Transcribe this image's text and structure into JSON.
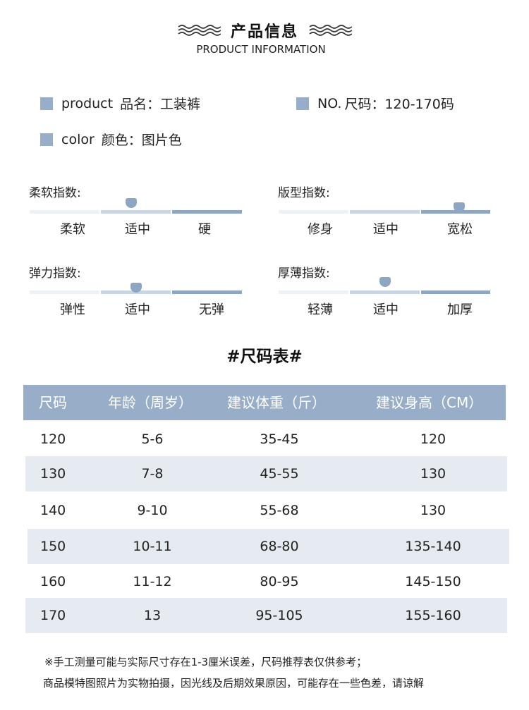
{
  "header": {
    "title": "产品信息",
    "subtitle": "PRODUCT INFORMATION"
  },
  "info": {
    "product_en": "product",
    "product_label": "品名：工装裤",
    "size_en": "NO.",
    "size_label": "尺码：120-170码",
    "color_en": "color",
    "color_label": "颜色：图片色"
  },
  "indices": [
    {
      "label": "柔软指数:",
      "options": [
        "柔软",
        "适中",
        "硬"
      ],
      "selected": "适中"
    },
    {
      "label": "版型指数:",
      "options": [
        "修身",
        "适中",
        "宽松"
      ],
      "selected": "宽松"
    },
    {
      "label": "弹力指数:",
      "options": [
        "弹性",
        "适中",
        "无弹"
      ],
      "selected": "适中"
    },
    {
      "label": "厚薄指数:",
      "options": [
        "轻薄",
        "适中",
        "加厚"
      ],
      "selected": "适中"
    }
  ],
  "size_table": {
    "title": "#尺码表#",
    "headers": [
      "尺码",
      "年龄（周岁）",
      "建议体重（斤）",
      "建议身高（CM）"
    ],
    "rows": [
      [
        "120",
        "5-6",
        "35-45",
        "120"
      ],
      [
        "130",
        "7-8",
        "45-55",
        "130"
      ],
      [
        "140",
        "9-10",
        "55-68",
        "130"
      ],
      [
        "150",
        "10-11",
        "68-80",
        "135-140"
      ],
      [
        "160",
        "11-12",
        "80-95",
        "145-150"
      ],
      [
        "170",
        "13",
        "95-105",
        "155-160"
      ]
    ]
  },
  "notes": [
    "※手工测量可能与实际尺寸存在1-3厘米误差，尺码推荐表仅供参考；",
    "商品模特图照片为实物拍摄，因光线及后期效果原因，可能存在一些色差，请谅解"
  ],
  "colors": {
    "accent": "#98aec8",
    "row_alt": "#e6ebf2"
  }
}
